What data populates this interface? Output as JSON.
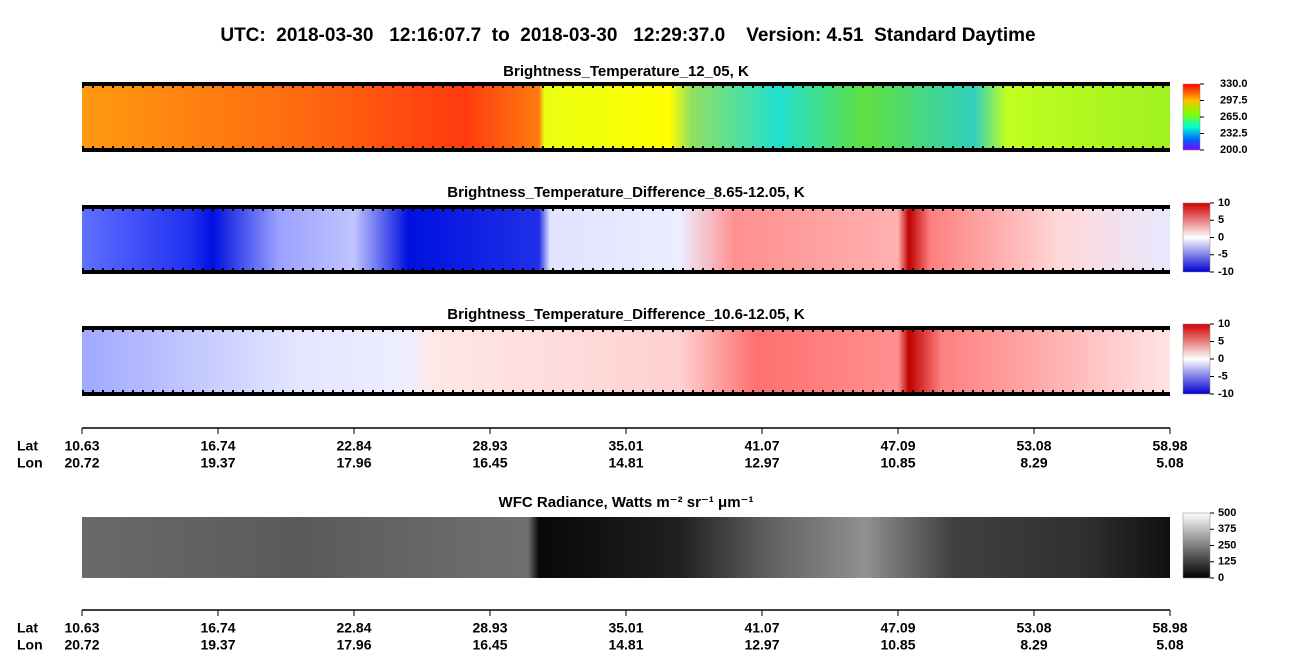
{
  "title": "UTC:  2018-03-30   12:16:07.7  to  2018-03-30   12:29:37.0    Version: 4.51  Standard Daytime",
  "panels": [
    {
      "title": "Brightness_Temperature_12_05, K",
      "colorbar_ticks": [
        "330.0",
        "297.5",
        "265.0",
        "232.5",
        "200.0"
      ]
    },
    {
      "title": "Brightness_Temperature_Difference_8.65-12.05, K",
      "colorbar_ticks": [
        "10",
        "5",
        "0",
        "-5",
        "-10"
      ]
    },
    {
      "title": "Brightness_Temperature_Difference_10.6-12.05, K",
      "colorbar_ticks": [
        "10",
        "5",
        "0",
        "-5",
        "-10"
      ]
    },
    {
      "title": "WFC Radiance, Watts m⁻² sr⁻¹ μm⁻¹",
      "colorbar_ticks": [
        "500",
        "375",
        "250",
        "125",
        "0"
      ]
    }
  ],
  "axes": [
    {
      "lat_label": "Lat",
      "lon_label": "Lon",
      "lat": [
        "10.63",
        "16.74",
        "22.84",
        "28.93",
        "35.01",
        "41.07",
        "47.09",
        "53.08",
        "58.98"
      ],
      "lon": [
        "20.72",
        "19.37",
        "17.96",
        "16.45",
        "14.81",
        "12.97",
        "10.85",
        "8.29",
        "5.08"
      ]
    },
    {
      "lat_label": "Lat",
      "lon_label": "Lon",
      "lat": [
        "10.63",
        "16.74",
        "22.84",
        "28.93",
        "35.01",
        "41.07",
        "47.09",
        "53.08",
        "58.98"
      ],
      "lon": [
        "20.72",
        "19.37",
        "17.96",
        "16.45",
        "14.81",
        "12.97",
        "10.85",
        "8.29",
        "5.08"
      ]
    }
  ]
}
